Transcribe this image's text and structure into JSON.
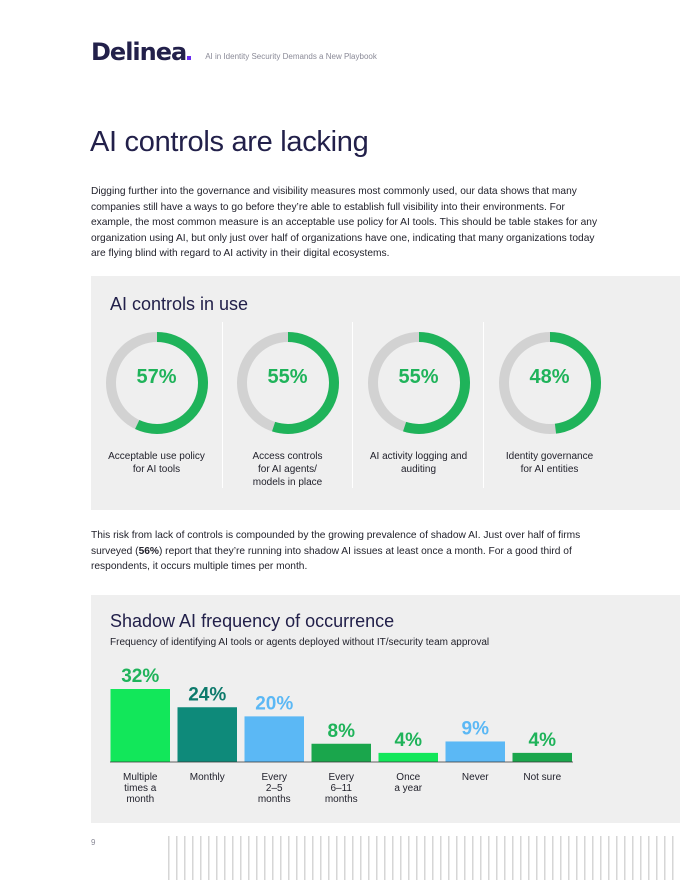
{
  "header": {
    "logo": "Delinea",
    "subtitle": "AI in Identity Security Demands a New Playbook"
  },
  "page_title": "AI controls are lacking",
  "intro": "Digging further into the governance and visibility measures most commonly used, our data shows that many companies still have a ways to go before they’re able to establish full visibility into their environments. For example, the most common measure is an acceptable use policy for AI tools. This should be table stakes for any organization using AI, but only just over half of organizations have one, indicating that many organizations today are flying blind with regard to AI activity in their digital ecosystems.",
  "controls": {
    "title": "AI controls in use",
    "items": [
      {
        "pct_label": "57%",
        "value": 57,
        "label": "Acceptable use policy for AI tools"
      },
      {
        "pct_label": "55%",
        "value": 55,
        "label": "Access controls for AI agents/ models in place"
      },
      {
        "pct_label": "55%",
        "value": 55,
        "label": "AI activity logging and auditing"
      },
      {
        "pct_label": "48%",
        "value": 48,
        "label": "Identity governance for AI entities"
      }
    ]
  },
  "para2": {
    "before": "This risk from lack of controls is compounded by the growing prevalence of shadow AI. Just over half of firms surveyed (",
    "bold": "56%",
    "after": ") report that they’re running into shadow AI issues at least once a month. For a good third of respondents, it occurs multiple times per month."
  },
  "colors": {
    "ring_green": "#1fb35a",
    "ring_gray": "#d2d2d2"
  },
  "chart_data": {
    "type": "bar",
    "title": "Shadow AI frequency of occurrence",
    "subtitle": "Frequency of identifying AI tools or agents deployed without IT/security team approval",
    "categories": [
      "Multiple times a month",
      "Monthly",
      "Every 2–5 months",
      "Every 6–11 months",
      "Once a year",
      "Never",
      "Not sure"
    ],
    "category_lines": [
      [
        "Multiple",
        "times a",
        "month"
      ],
      [
        "Monthly"
      ],
      [
        "Every",
        "2–5",
        "months"
      ],
      [
        "Every",
        "6–11",
        "months"
      ],
      [
        "Once",
        "a year"
      ],
      [
        "Never"
      ],
      [
        "Not sure"
      ]
    ],
    "values": [
      32,
      24,
      20,
      8,
      4,
      9,
      4
    ],
    "value_labels": [
      "32%",
      "24%",
      "20%",
      "8%",
      "4%",
      "9%",
      "4%"
    ],
    "bar_colors": [
      "#12e75a",
      "#0e8a7a",
      "#5bb8f5",
      "#1aa64c",
      "#12e75a",
      "#5bb8f5",
      "#1aa64c"
    ],
    "label_colors": [
      "#1fb35a",
      "#0e7a6c",
      "#5bb8f5",
      "#1fb35a",
      "#1fb35a",
      "#5bb8f5",
      "#1fb35a"
    ],
    "ylim": [
      0,
      32
    ],
    "xlabel": "",
    "ylabel": ""
  },
  "page_number": "9"
}
